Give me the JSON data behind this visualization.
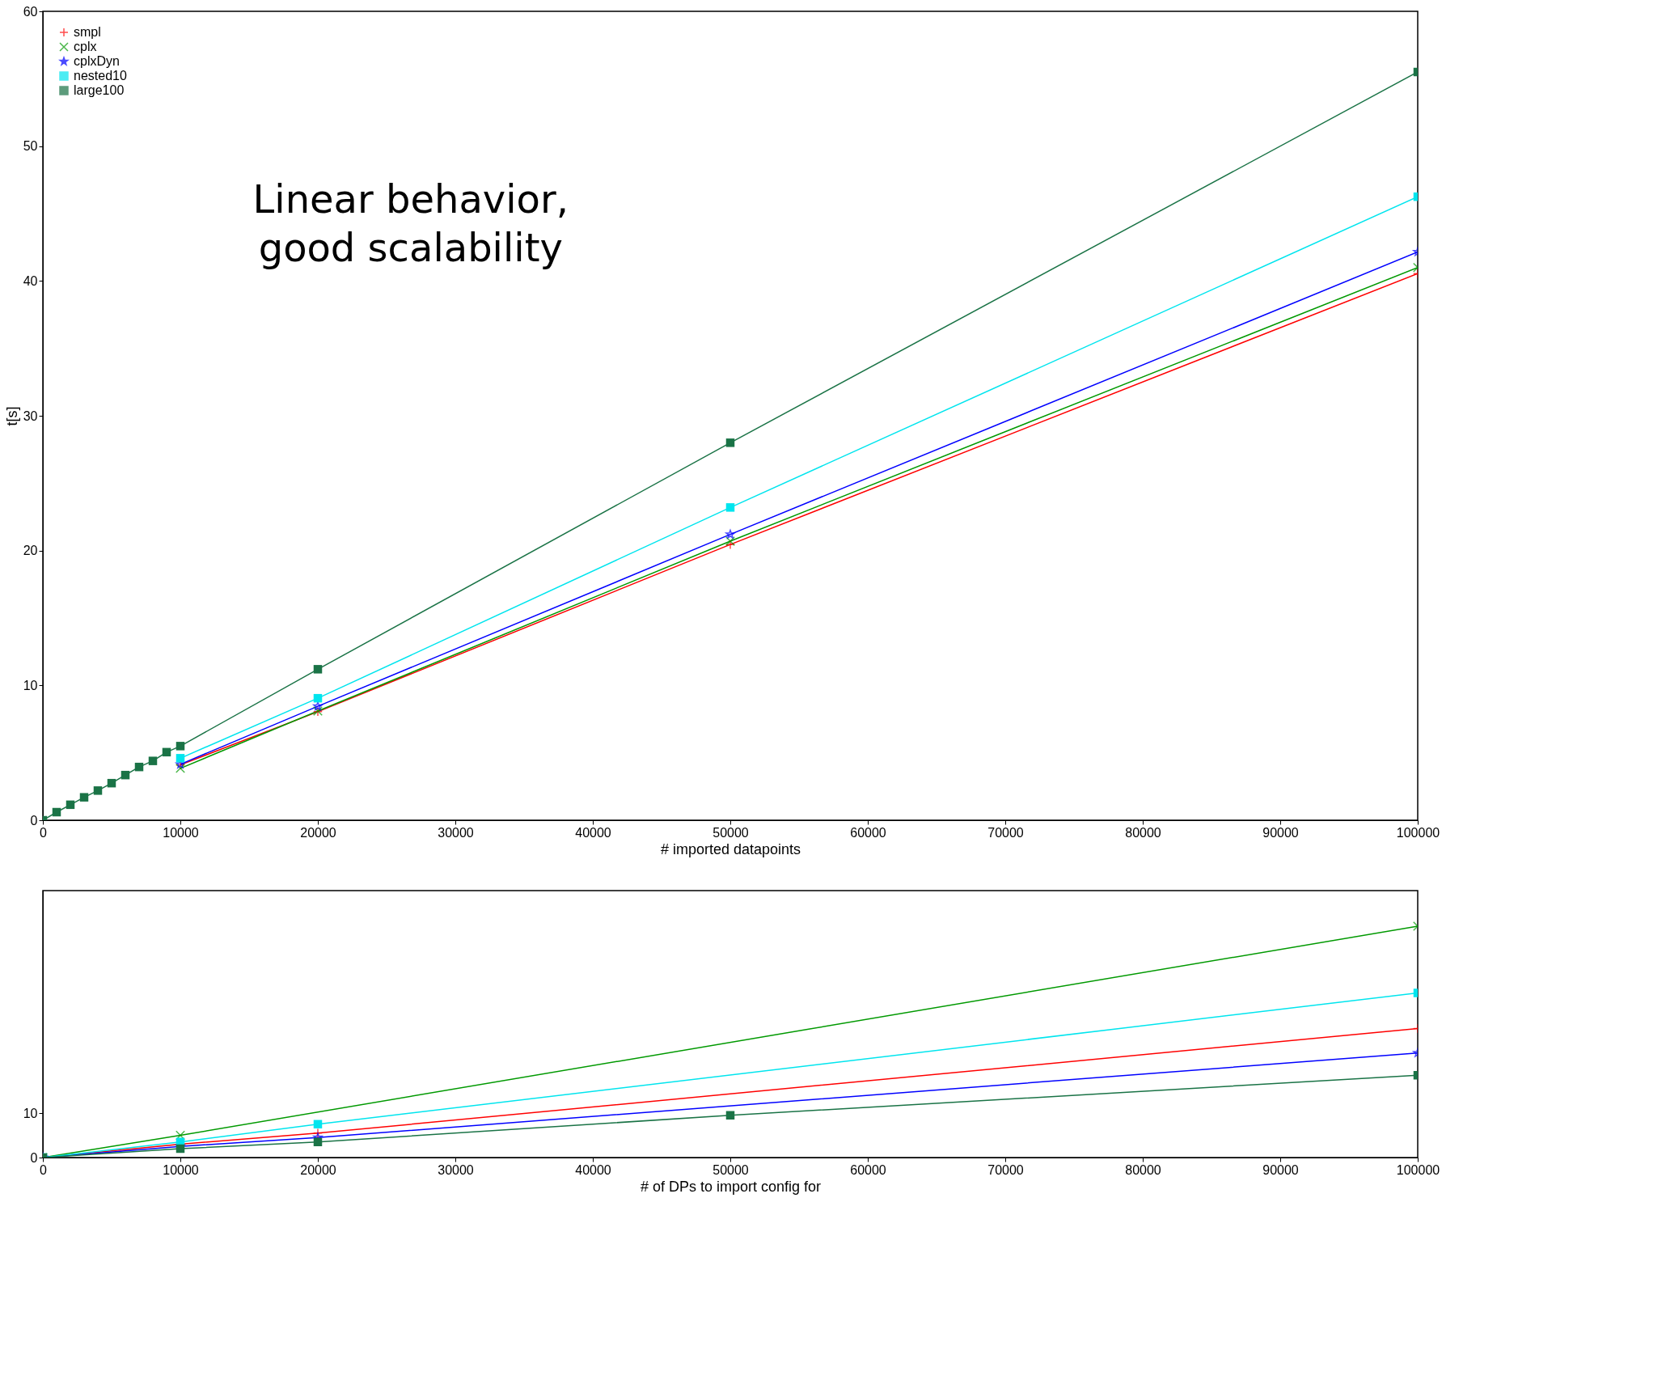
{
  "chart_data": [
    {
      "type": "line",
      "xlabel": "# imported datapoints",
      "ylabel": "t[s]",
      "xlim": [
        0,
        100000
      ],
      "ylim": [
        0,
        60
      ],
      "xticks": [
        0,
        10000,
        20000,
        30000,
        40000,
        50000,
        60000,
        70000,
        80000,
        90000,
        100000
      ],
      "yticks": [
        0,
        10,
        20,
        30,
        40,
        50,
        60
      ],
      "grid": false,
      "legend": "top left",
      "annotations": [
        "Linear behavior,\ngood scalability"
      ],
      "series": [
        {
          "name": "smpl",
          "color": "#ff0000",
          "marker": "cross",
          "x": [
            10000,
            20000,
            50000,
            100000
          ],
          "values": [
            4.1,
            8.05,
            20.45,
            40.55
          ]
        },
        {
          "name": "cplx",
          "color": "#009900",
          "marker": "x",
          "x": [
            10000,
            20000,
            50000,
            100000
          ],
          "values": [
            3.85,
            8.1,
            20.7,
            41.0
          ]
        },
        {
          "name": "cplxDyn",
          "color": "#0000ff",
          "marker": "star",
          "x": [
            10000,
            20000,
            50000,
            100000
          ],
          "values": [
            4.15,
            8.45,
            21.2,
            42.15
          ]
        },
        {
          "name": "nested10",
          "color": "#00e5ee",
          "marker": "square",
          "x": [
            10000,
            20000,
            50000,
            100000
          ],
          "values": [
            4.6,
            9.05,
            23.2,
            46.25
          ]
        },
        {
          "name": "large100",
          "color": "#1a7346",
          "marker": "square",
          "x": [
            0,
            1000,
            2000,
            3000,
            4000,
            5000,
            6000,
            7000,
            8000,
            9000,
            10000,
            20000,
            50000,
            100000
          ],
          "values": [
            0,
            0.6,
            1.15,
            1.7,
            2.2,
            2.75,
            3.35,
            3.95,
            4.4,
            5.05,
            5.5,
            11.2,
            28.0,
            55.5
          ]
        }
      ]
    },
    {
      "type": "line",
      "xlabel": "# of DPs to import config for",
      "xlim": [
        0,
        100000
      ],
      "ylim": [
        0,
        60
      ],
      "xticks": [
        0,
        10000,
        20000,
        30000,
        40000,
        50000,
        60000,
        70000,
        80000,
        90000,
        100000
      ],
      "yticks": [
        0,
        10
      ],
      "grid": false,
      "series": [
        {
          "color": "#ff0000",
          "marker": "cross",
          "x": [
            0,
            10000,
            20000,
            100000
          ],
          "values": [
            0,
            3,
            5.5,
            29
          ]
        },
        {
          "color": "#009900",
          "marker": "x",
          "x": [
            0,
            10000,
            100000
          ],
          "values": [
            0,
            5,
            52
          ]
        },
        {
          "color": "#0000ff",
          "marker": "star",
          "x": [
            0,
            10000,
            20000,
            100000
          ],
          "values": [
            0,
            2.5,
            4.5,
            23.5
          ]
        },
        {
          "color": "#00e5ee",
          "marker": "square",
          "x": [
            0,
            10000,
            20000,
            100000
          ],
          "values": [
            0,
            3.5,
            7.5,
            37
          ]
        },
        {
          "color": "#1a7346",
          "marker": "square",
          "x": [
            0,
            10000,
            20000,
            50000,
            100000
          ],
          "values": [
            0,
            2,
            3.5,
            9.5,
            18.5
          ]
        }
      ]
    }
  ]
}
